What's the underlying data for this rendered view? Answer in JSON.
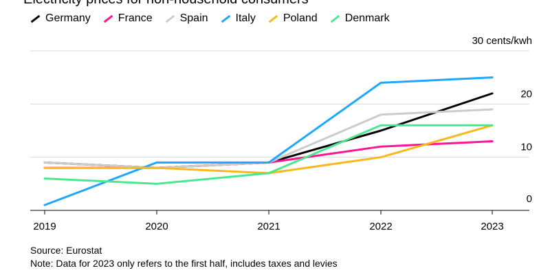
{
  "title": "Electricity prices for non-household consumers",
  "source": "Source: Eurostat",
  "note": "Note: Data for 2023 only refers to the first half, includes taxes and levies",
  "chart_data": {
    "type": "line",
    "title": "Electricity prices for non-household consumers",
    "x": [
      "2019",
      "2020",
      "2021",
      "2022",
      "2023"
    ],
    "ylim": [
      0,
      30
    ],
    "yticks": [
      0,
      10,
      20,
      30
    ],
    "ytick_labels": [
      "0",
      "10",
      "20",
      "30 cents/kwh"
    ],
    "grid": true,
    "legend_position": "top-left",
    "series": [
      {
        "name": "Germany",
        "color": "#000000",
        "values": [
          9,
          8,
          9,
          15,
          22
        ]
      },
      {
        "name": "France",
        "color": "#ff1493",
        "values": [
          8,
          8,
          9,
          12,
          13
        ]
      },
      {
        "name": "Spain",
        "color": "#cccccc",
        "values": [
          9,
          8,
          9,
          18,
          19
        ]
      },
      {
        "name": "Italy",
        "color": "#1ea7fd",
        "values": [
          1,
          9,
          9,
          24,
          25
        ]
      },
      {
        "name": "Poland",
        "color": "#fbb81c",
        "values": [
          8,
          8,
          7,
          10,
          16
        ]
      },
      {
        "name": "Denmark",
        "color": "#4ae890",
        "values": [
          6,
          5,
          7,
          16,
          16
        ]
      }
    ]
  }
}
